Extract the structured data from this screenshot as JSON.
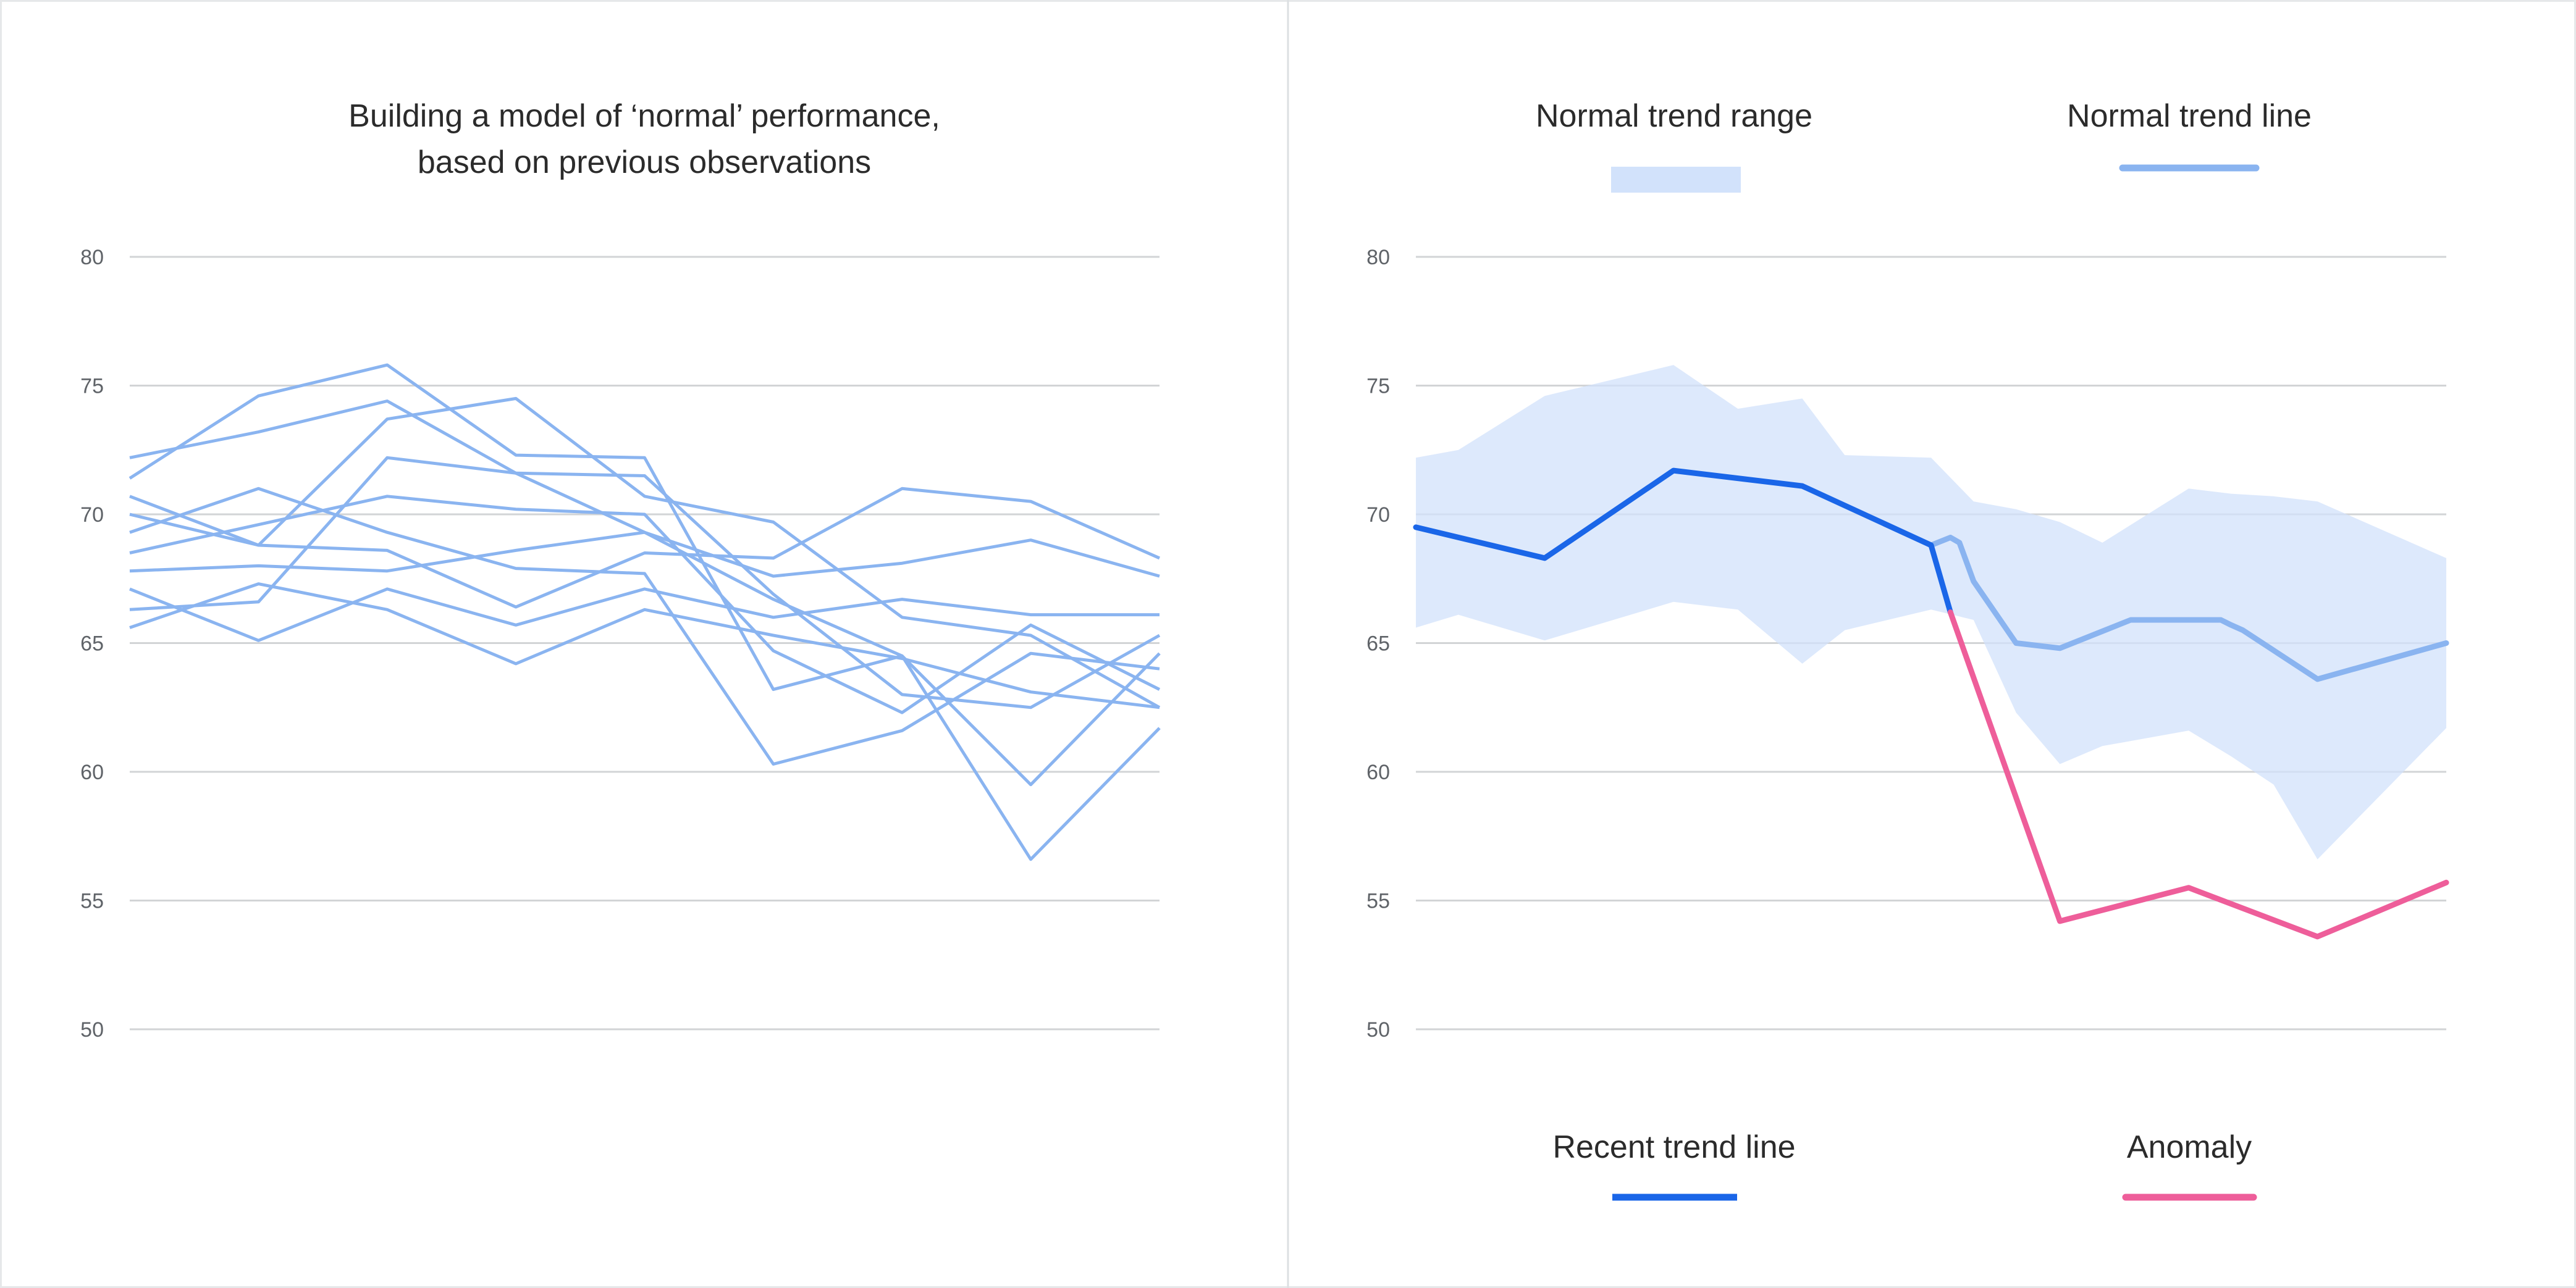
{
  "colors": {
    "history": "#8ab4f0",
    "range_fill": "#d2e2fb",
    "normal_line": "#8ab4f0",
    "recent": "#1a66e8",
    "anomaly": "#ee5e9a",
    "divider": "#dcdfe2"
  },
  "chart_data": [
    {
      "type": "line",
      "title": [
        "Building a model of ‘normal’ performance,",
        "based on previous observations"
      ],
      "xlabel": "",
      "ylabel": "",
      "ylim": [
        50,
        80
      ],
      "yticks": [
        80,
        75,
        70,
        65,
        60,
        55,
        50
      ],
      "grid": true,
      "x": [
        0,
        1,
        2,
        3,
        4,
        5,
        6,
        7,
        8
      ],
      "series": [
        {
          "values": [
            72.2,
            73.2,
            74.4,
            71.6,
            69.3,
            66.7,
            64.5,
            56.6,
            61.7
          ]
        },
        {
          "values": [
            71.4,
            74.6,
            75.8,
            72.3,
            72.2,
            63.2,
            64.5,
            59.5,
            64.6
          ]
        },
        {
          "values": [
            69.3,
            71.0,
            69.3,
            67.9,
            67.7,
            60.3,
            61.6,
            64.6,
            64.0
          ]
        },
        {
          "values": [
            70.7,
            68.8,
            73.7,
            74.5,
            70.7,
            69.7,
            66.0,
            65.3,
            62.5
          ]
        },
        {
          "values": [
            70.0,
            68.8,
            68.6,
            66.4,
            68.5,
            68.3,
            71.0,
            70.5,
            68.3
          ]
        },
        {
          "values": [
            68.5,
            69.6,
            70.7,
            70.2,
            70.0,
            64.7,
            62.3,
            65.7,
            63.2
          ]
        },
        {
          "values": [
            67.1,
            65.1,
            67.1,
            65.7,
            67.1,
            66.0,
            66.7,
            66.1,
            66.1
          ]
        },
        {
          "values": [
            66.3,
            66.6,
            72.2,
            71.6,
            71.5,
            66.9,
            63.0,
            62.5,
            65.3
          ]
        },
        {
          "values": [
            67.8,
            68.0,
            67.8,
            68.6,
            69.3,
            67.6,
            68.1,
            69.0,
            67.6
          ]
        },
        {
          "values": [
            65.6,
            67.3,
            66.3,
            64.2,
            66.3,
            65.3,
            64.4,
            63.1,
            62.5
          ]
        }
      ]
    },
    {
      "type": "line",
      "title": "",
      "xlabel": "",
      "ylabel": "",
      "ylim": [
        50,
        80
      ],
      "yticks": [
        80,
        75,
        70,
        65,
        60,
        55,
        50
      ],
      "grid": true,
      "legend": [
        {
          "label": "Normal trend range",
          "kind": "area"
        },
        {
          "label": "Normal trend line",
          "kind": "normal"
        },
        {
          "label": "Recent trend line",
          "kind": "recent"
        },
        {
          "label": "Anomaly",
          "kind": "anomaly"
        }
      ],
      "normal_range": {
        "x": [
          0,
          0.33,
          1,
          2,
          2.5,
          3,
          3.33,
          4,
          4.33,
          4.66,
          5,
          5.33,
          6,
          6.33,
          6.66,
          7,
          8
        ],
        "upper": [
          72.2,
          72.5,
          74.6,
          75.8,
          74.1,
          74.5,
          72.3,
          72.2,
          70.5,
          70.2,
          69.7,
          68.9,
          71.0,
          70.8,
          70.7,
          70.5,
          68.3
        ],
        "lower": [
          65.6,
          66.1,
          65.1,
          66.6,
          66.3,
          64.2,
          65.5,
          66.3,
          65.9,
          62.3,
          60.3,
          61.0,
          61.6,
          60.6,
          59.5,
          56.6,
          61.7
        ]
      },
      "series": [
        {
          "kind": "normal",
          "x": [
            4,
            4.15,
            4.22,
            4.33,
            4.66,
            5,
            5.2,
            5.55,
            6,
            6.25,
            6.33,
            6.42,
            7,
            8
          ],
          "values": [
            68.8,
            69.1,
            68.9,
            67.4,
            65.0,
            64.8,
            65.2,
            65.9,
            65.9,
            65.9,
            65.7,
            65.5,
            63.6,
            65.0
          ]
        },
        {
          "kind": "recent",
          "x": [
            0,
            1,
            2,
            3,
            4,
            4.15
          ],
          "values": [
            69.5,
            68.3,
            71.7,
            71.1,
            68.8,
            66.2
          ]
        },
        {
          "kind": "anomaly",
          "x": [
            4.15,
            5,
            6,
            7,
            8
          ],
          "values": [
            66.2,
            54.2,
            55.5,
            53.6,
            55.7
          ]
        }
      ]
    }
  ]
}
